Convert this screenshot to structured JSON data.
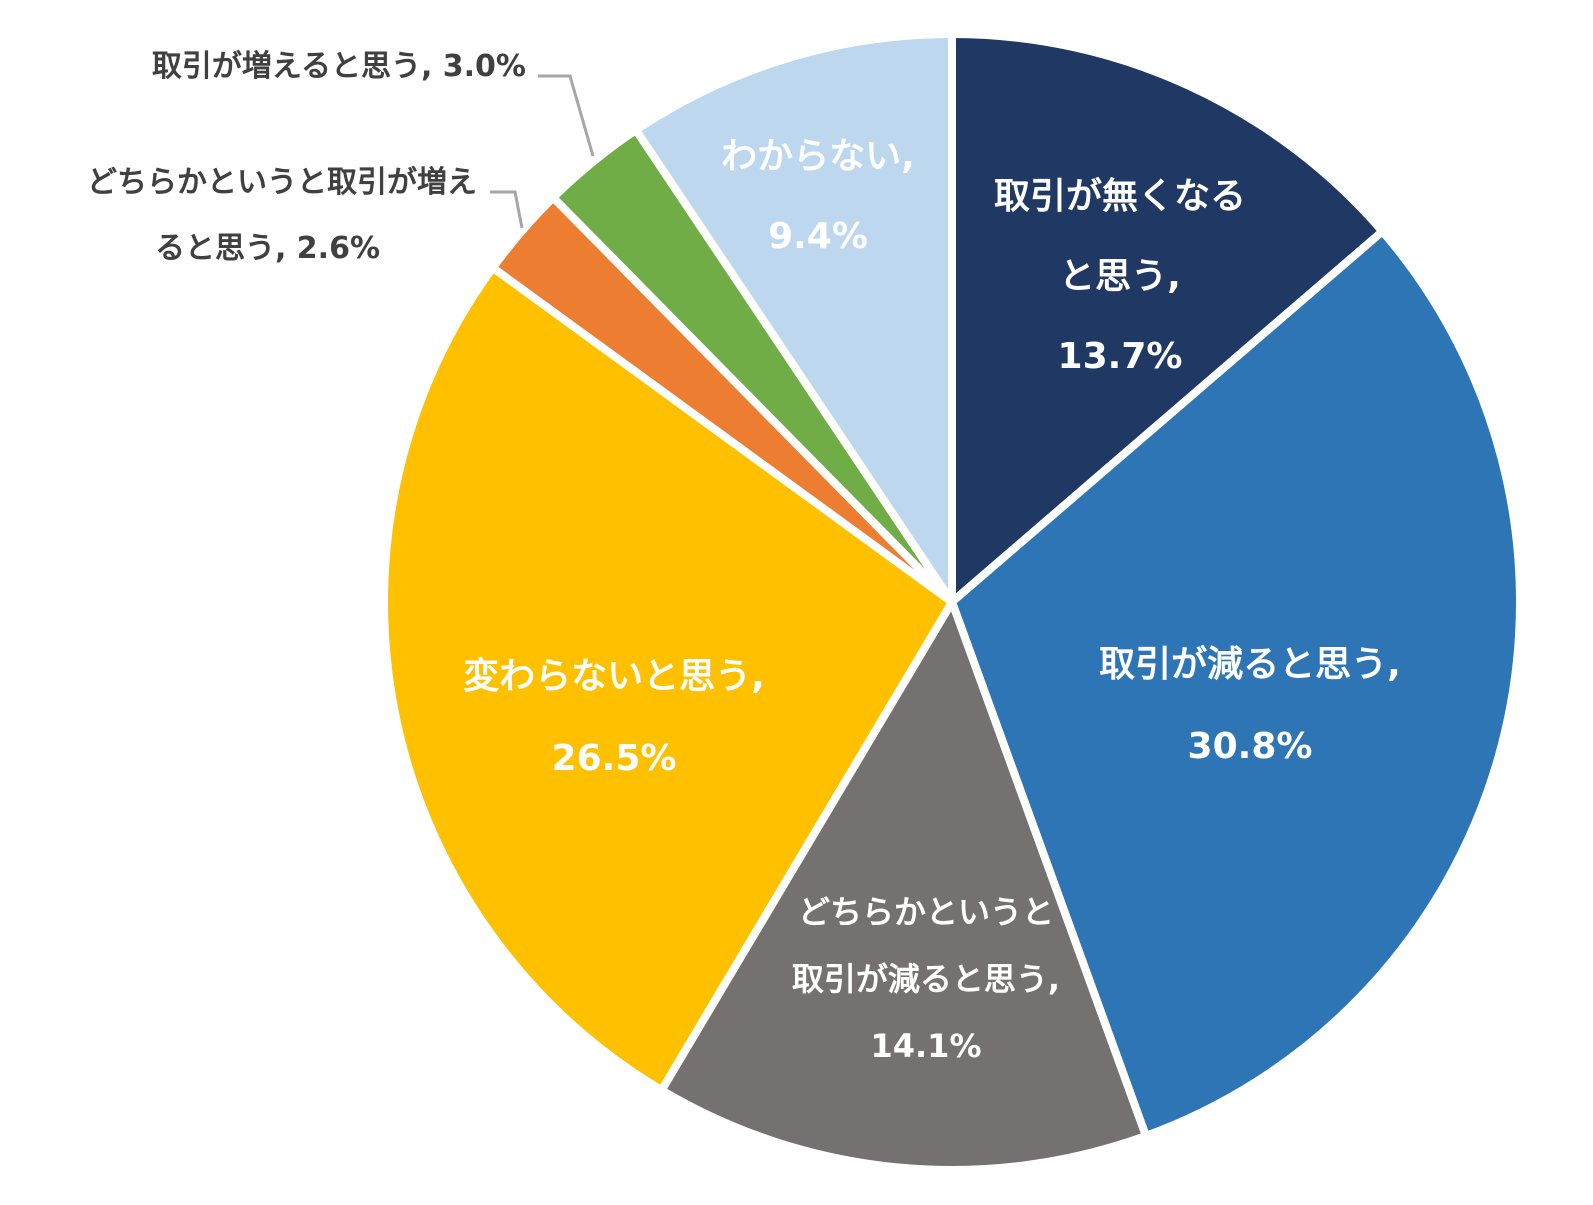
{
  "chart_data": {
    "type": "pie",
    "title": "",
    "slices": [
      {
        "label": "取引が無くなると思う",
        "value": 13.7,
        "text": "13.7%",
        "color": "#203864"
      },
      {
        "label": "取引が減ると思う",
        "value": 30.8,
        "text": "30.8%",
        "color": "#2E75B6"
      },
      {
        "label": "どちらかというと取引が減ると思う",
        "value": 14.1,
        "text": "14.1%",
        "color": "#767171"
      },
      {
        "label": "変わらないと思う",
        "value": 26.5,
        "text": "26.5%",
        "color": "#FFC000"
      },
      {
        "label": "どちらかというと取引が増えると思う",
        "value": 2.6,
        "text": "2.6%",
        "color": "#ED7D31"
      },
      {
        "label": "取引が増えると思う",
        "value": 3.0,
        "text": "3.0%",
        "color": "#70AD47"
      },
      {
        "label": "わからない",
        "value": 9.4,
        "text": "9.4%",
        "color": "#BDD7EE"
      }
    ],
    "data_labels": {
      "nakunaru_1": "取引が無くなる",
      "nakunaru_2": "と思う,",
      "nakunaru_3": "13.7%",
      "heru_1": "取引が減ると思う,",
      "heru_2": "30.8%",
      "dochira_heru_1": "どちらかというと",
      "dochira_heru_2": "取引が減ると思う,",
      "dochira_heru_3": "14.1%",
      "kawaranai_1": "変わらないと思う,",
      "kawaranai_2": "26.5%",
      "dochira_fueru_1": "どちらかというと取引が増え",
      "dochira_fueru_2": "ると思う, 2.6%",
      "fueru_1": "取引が増えると思う, 3.0%",
      "wakaranai_1": "わからない,",
      "wakaranai_2": "9.4%"
    },
    "legend": "none"
  }
}
